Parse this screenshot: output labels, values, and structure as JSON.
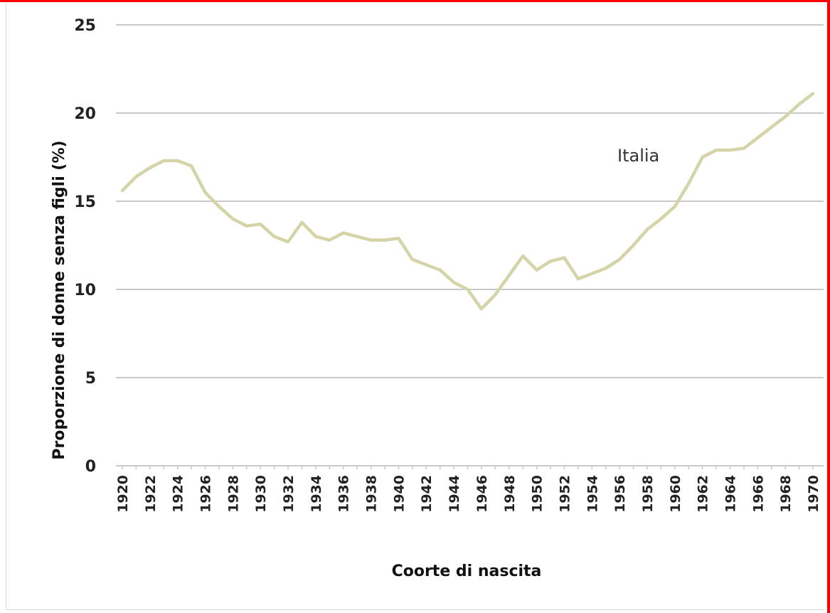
{
  "colors": {
    "border_accent": "#ff0000",
    "line": "#d4d4a8",
    "gridline": "#c9c9c9"
  },
  "chart_data": {
    "type": "line",
    "title": "",
    "xlabel": "Coorte di nascita",
    "ylabel": "Proporzione di donne senza figli (%)",
    "ylim": [
      0,
      25
    ],
    "yticks": [
      "0",
      "5",
      "10",
      "15",
      "20",
      "25"
    ],
    "xticks": [
      "1920",
      "1922",
      "1924",
      "1926",
      "1928",
      "1930",
      "1932",
      "1934",
      "1936",
      "1938",
      "1940",
      "1942",
      "1944",
      "1946",
      "1948",
      "1950",
      "1952",
      "1954",
      "1956",
      "1958",
      "1960",
      "1962",
      "1964",
      "1966",
      "1968",
      "1970"
    ],
    "grid": true,
    "series_label": "Italia",
    "series": [
      {
        "name": "Italia",
        "x": [
          1920,
          1921,
          1922,
          1923,
          1924,
          1925,
          1926,
          1927,
          1928,
          1929,
          1930,
          1931,
          1932,
          1933,
          1934,
          1935,
          1936,
          1937,
          1938,
          1939,
          1940,
          1941,
          1942,
          1943,
          1944,
          1945,
          1946,
          1947,
          1948,
          1949,
          1950,
          1951,
          1952,
          1953,
          1954,
          1955,
          1956,
          1957,
          1958,
          1959,
          1960,
          1961,
          1962,
          1963,
          1964,
          1965,
          1966,
          1967,
          1968,
          1969,
          1970
        ],
        "values": [
          15.6,
          16.4,
          16.9,
          17.3,
          17.3,
          17.0,
          15.5,
          14.7,
          14.0,
          13.6,
          13.7,
          13.0,
          12.7,
          13.8,
          13.0,
          12.8,
          13.2,
          13.0,
          12.8,
          12.8,
          12.9,
          11.7,
          11.4,
          11.1,
          10.4,
          10.0,
          8.9,
          9.7,
          10.8,
          11.9,
          11.1,
          11.6,
          11.8,
          10.6,
          10.9,
          11.2,
          11.7,
          12.5,
          13.4,
          14.0,
          14.7,
          16.0,
          17.5,
          17.9,
          17.9,
          18.0,
          18.6,
          19.2,
          19.8,
          20.5,
          21.1
        ]
      }
    ]
  }
}
